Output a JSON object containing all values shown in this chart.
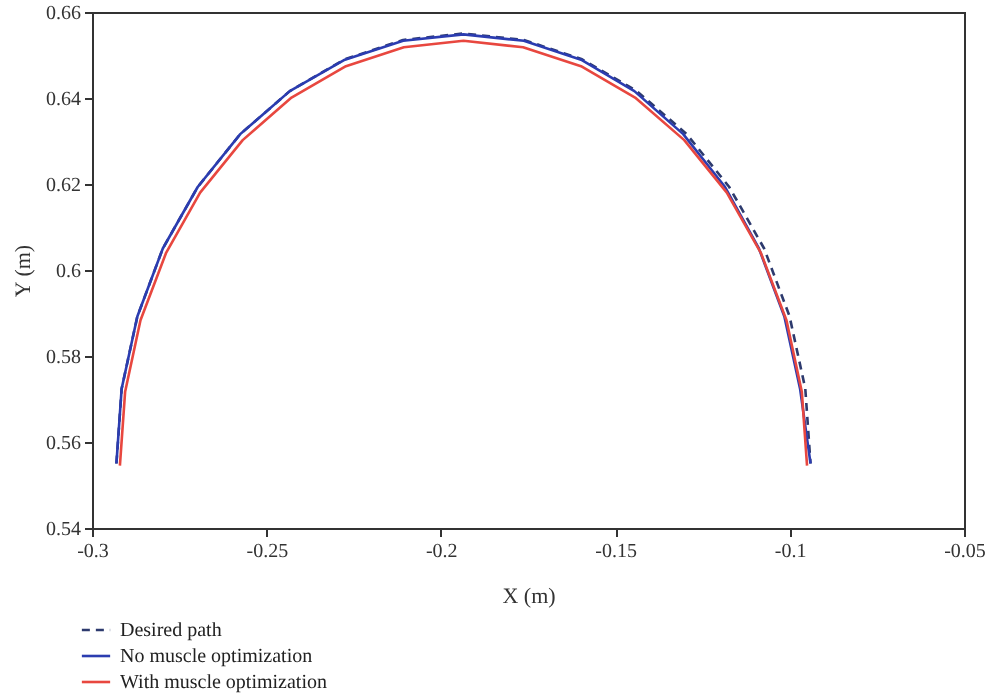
{
  "chart_data": {
    "type": "line",
    "xlabel": "X (m)",
    "ylabel": "Y (m)",
    "xlim": [
      -0.3,
      -0.05
    ],
    "xticks": [
      -0.3,
      -0.25,
      -0.2,
      -0.15,
      -0.1,
      -0.05
    ],
    "ylim": [
      0.54,
      0.66
    ],
    "yticks": [
      0.54,
      0.56,
      0.58,
      0.6,
      0.62,
      0.64,
      0.66
    ],
    "grid": false,
    "legend": "bottom left",
    "marker": "none",
    "series": [
      {
        "name": "Desired path",
        "color": "#2d3a6e",
        "line_style": "dashed",
        "x": [
          -0.293,
          -0.2915,
          -0.287,
          -0.2797,
          -0.2697,
          -0.2575,
          -0.2433,
          -0.2275,
          -0.2108,
          -0.1935,
          -0.1762,
          -0.1595,
          -0.1438,
          -0.1295,
          -0.1173,
          -0.1073,
          -0.1,
          -0.0955,
          -0.094
        ],
        "values": [
          0.555,
          0.5724,
          0.5892,
          0.605,
          0.6193,
          0.6316,
          0.6416,
          0.649,
          0.6535,
          0.655,
          0.6535,
          0.649,
          0.6416,
          0.6316,
          0.6193,
          0.605,
          0.5892,
          0.5724,
          0.555
        ]
      },
      {
        "name": "No muscle optimization",
        "color": "#2b3cb0",
        "line_style": "solid",
        "x": [
          -0.293,
          -0.2915,
          -0.287,
          -0.2797,
          -0.2697,
          -0.2575,
          -0.2433,
          -0.2275,
          -0.2108,
          -0.1935,
          -0.1762,
          -0.1598,
          -0.1445,
          -0.1305,
          -0.1185,
          -0.1088,
          -0.1015,
          -0.097,
          -0.094
        ],
        "values": [
          0.555,
          0.5724,
          0.5892,
          0.605,
          0.6193,
          0.6316,
          0.6416,
          0.6489,
          0.6533,
          0.6548,
          0.6533,
          0.6489,
          0.6416,
          0.6316,
          0.6193,
          0.605,
          0.5892,
          0.5724,
          0.555
        ]
      },
      {
        "name": "With muscle optimization",
        "color": "#e8473f",
        "line_style": "solid",
        "x": [
          -0.292,
          -0.2905,
          -0.2861,
          -0.2788,
          -0.269,
          -0.2568,
          -0.2428,
          -0.2272,
          -0.2106,
          -0.1935,
          -0.1764,
          -0.1598,
          -0.1443,
          -0.1302,
          -0.118,
          -0.1082,
          -0.1009,
          -0.0965,
          -0.095
        ],
        "values": [
          0.5545,
          0.5717,
          0.5883,
          0.6039,
          0.618,
          0.6302,
          0.6401,
          0.6474,
          0.6518,
          0.6533,
          0.6518,
          0.6474,
          0.6401,
          0.6302,
          0.618,
          0.6039,
          0.5883,
          0.5717,
          0.5545
        ]
      }
    ]
  }
}
